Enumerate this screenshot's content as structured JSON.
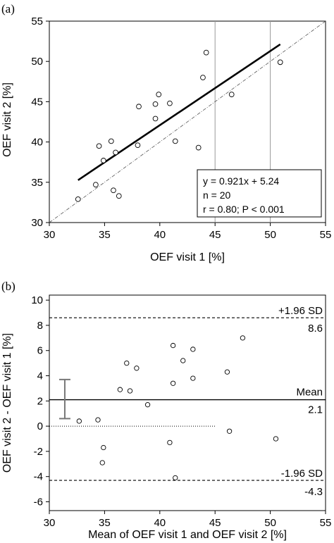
{
  "chart_data": [
    {
      "panel": "(a)",
      "type": "scatter",
      "xlabel": "OEF visit 1 [%]",
      "ylabel": "OEF visit 2 [%]",
      "xlim": [
        30,
        55
      ],
      "ylim": [
        30,
        55
      ],
      "xticks": [
        30,
        35,
        40,
        45,
        50,
        55
      ],
      "yticks": [
        30,
        35,
        40,
        45,
        50,
        55
      ],
      "grid": "vertical lines at x = 45 and x = 50",
      "points": [
        {
          "x": 32.6,
          "y": 32.9
        },
        {
          "x": 34.2,
          "y": 34.7
        },
        {
          "x": 34.5,
          "y": 39.5
        },
        {
          "x": 34.9,
          "y": 37.7
        },
        {
          "x": 35.6,
          "y": 40.1
        },
        {
          "x": 35.8,
          "y": 34.0
        },
        {
          "x": 36.0,
          "y": 38.7
        },
        {
          "x": 36.3,
          "y": 33.3
        },
        {
          "x": 38.0,
          "y": 39.6
        },
        {
          "x": 38.1,
          "y": 44.4
        },
        {
          "x": 39.6,
          "y": 42.9
        },
        {
          "x": 39.6,
          "y": 44.7
        },
        {
          "x": 39.9,
          "y": 45.9
        },
        {
          "x": 40.9,
          "y": 44.8
        },
        {
          "x": 41.4,
          "y": 40.1
        },
        {
          "x": 43.5,
          "y": 39.3
        },
        {
          "x": 43.9,
          "y": 48.0
        },
        {
          "x": 44.2,
          "y": 51.1
        },
        {
          "x": 46.5,
          "y": 45.9
        },
        {
          "x": 50.9,
          "y": 49.9
        }
      ],
      "regression_line": {
        "slope": 0.921,
        "intercept": 5.24,
        "x_range": [
          32.6,
          50.9
        ]
      },
      "identity_line": {
        "x_range": [
          30,
          55
        ]
      },
      "annotation": {
        "line1": "y = 0.921x + 5.24",
        "line2": "n = 20",
        "line3": "r = 0.80; P < 0.001"
      }
    },
    {
      "panel": "(b)",
      "type": "scatter",
      "xlabel": "Mean of OEF visit 1 and OEF visit 2 [%]",
      "ylabel": "OEF visit 2 - OEF visit 1 [%]",
      "xlim": [
        30,
        55
      ],
      "ylim": [
        -6.7,
        10.4
      ],
      "xticks": [
        30,
        35,
        40,
        45,
        50,
        55
      ],
      "yticks": [
        -6,
        -4,
        -2,
        0,
        2,
        4,
        6,
        8,
        10
      ],
      "points": [
        {
          "x": 32.7,
          "y": 0.4
        },
        {
          "x": 34.4,
          "y": 0.5
        },
        {
          "x": 34.8,
          "y": -2.9
        },
        {
          "x": 34.9,
          "y": -1.7
        },
        {
          "x": 36.4,
          "y": 2.9
        },
        {
          "x": 37.0,
          "y": 5.0
        },
        {
          "x": 37.3,
          "y": 2.8
        },
        {
          "x": 37.9,
          "y": 4.6
        },
        {
          "x": 38.9,
          "y": 1.7
        },
        {
          "x": 40.9,
          "y": -1.3
        },
        {
          "x": 41.2,
          "y": 3.4
        },
        {
          "x": 41.2,
          "y": 6.4
        },
        {
          "x": 41.4,
          "y": -4.1
        },
        {
          "x": 42.1,
          "y": 5.2
        },
        {
          "x": 43.0,
          "y": 6.1
        },
        {
          "x": 43.0,
          "y": 3.8
        },
        {
          "x": 46.1,
          "y": 4.3
        },
        {
          "x": 46.3,
          "y": -0.4
        },
        {
          "x": 47.5,
          "y": 7.0
        },
        {
          "x": 50.5,
          "y": -1.0
        }
      ],
      "zero_line": {
        "y": 0,
        "x_end": 45
      },
      "mean_line": {
        "y": 2.1,
        "label": "Mean",
        "value_label": "2.1"
      },
      "upper_loa": {
        "y": 8.6,
        "label": "+1.96 SD",
        "value_label": "8.6"
      },
      "lower_loa": {
        "y": -4.3,
        "label": "-1.96 SD",
        "value_label": "-4.3"
      },
      "ci_bar": {
        "x": 31.4,
        "low": 0.6,
        "high": 3.7
      }
    }
  ]
}
